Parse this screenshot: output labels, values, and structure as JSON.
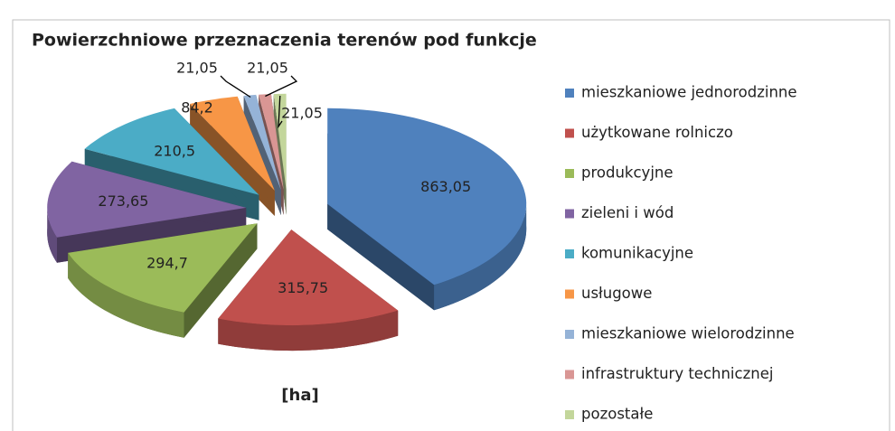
{
  "chart_data": {
    "type": "pie",
    "title": "Powierzchniowe przeznaczenia terenów pod funkcje",
    "subtitle": "[ha]",
    "categories": [
      "mieszkaniowe jednorodzinne",
      "użytkowane rolniczo",
      "produkcyjne",
      "zieleni i wód",
      "komunikacyjne",
      "usługowe",
      "mieszkaniowe wielorodzinne",
      "infrastruktury technicznej",
      "pozostałe"
    ],
    "values": [
      863.05,
      315.75,
      294.7,
      273.65,
      210.5,
      84.2,
      21.05,
      21.05,
      21.05
    ],
    "value_labels": [
      "863,05",
      "315,75",
      "294,7",
      "273,65",
      "210,5",
      "84,2",
      "21,05",
      "21,05",
      "21,05"
    ],
    "colors": [
      "#4f81bd",
      "#c0504d",
      "#9bbb59",
      "#8064a2",
      "#4bacc6",
      "#f79646",
      "#95b3d7",
      "#d99694",
      "#c3d69b"
    ],
    "legend": "right"
  }
}
